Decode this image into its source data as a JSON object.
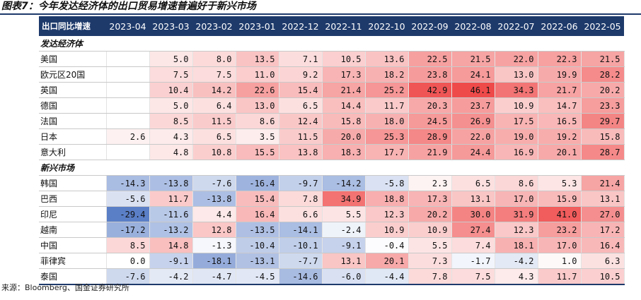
{
  "title": "图表7：今年发达经济体的出口贸易增速普遍好于新兴市场",
  "source": "来源：Bloomberg、国金证券研究所",
  "header": {
    "first": "出口同比增速",
    "months": [
      "2023-04",
      "2023-03",
      "2023-02",
      "2023-01",
      "2022-12",
      "2022-11",
      "2022-10",
      "2022-09",
      "2022-08",
      "2022-07",
      "2022-06",
      "2022-05"
    ]
  },
  "sections": [
    {
      "name": "发达经济体",
      "rows": [
        {
          "label": "美国",
          "values": [
            "",
            "5.0",
            "8.0",
            "13.5",
            "7.1",
            "10.5",
            "13.6",
            "22.5",
            "21.5",
            "22.0",
            "22.3",
            "21.5"
          ]
        },
        {
          "label": "欧元区20国",
          "values": [
            "",
            "7.5",
            "7.5",
            "11.0",
            "9.2",
            "17.3",
            "18.2",
            "23.8",
            "24.1",
            "13.0",
            "19.9",
            "28.2"
          ]
        },
        {
          "label": "英国",
          "values": [
            "",
            "10.4",
            "14.2",
            "22.6",
            "15.4",
            "21.4",
            "25.2",
            "42.9",
            "46.1",
            "34.3",
            "21.7",
            "20.2"
          ]
        },
        {
          "label": "德国",
          "values": [
            "",
            "5.0",
            "6.4",
            "13.0",
            "6.5",
            "14.4",
            "11.7",
            "20.3",
            "23.7",
            "10.9",
            "14.7",
            "23.3"
          ]
        },
        {
          "label": "法国",
          "values": [
            "",
            "8.5",
            "11.5",
            "8.6",
            "12.4",
            "15.8",
            "18.0",
            "24.5",
            "26.9",
            "17.5",
            "16.5",
            "29.7"
          ]
        },
        {
          "label": "日本",
          "values": [
            "2.6",
            "4.3",
            "6.5",
            "3.5",
            "11.5",
            "20.0",
            "25.3",
            "28.9",
            "22.0",
            "19.0",
            "19.2",
            "15.8"
          ]
        },
        {
          "label": "意大利",
          "values": [
            "",
            "4.8",
            "10.8",
            "15.5",
            "13.8",
            "18.3",
            "17.7",
            "21.9",
            "24.4",
            "16.9",
            "20.1",
            "28.7"
          ]
        }
      ]
    },
    {
      "name": "新兴市场",
      "rows": [
        {
          "label": "韩国",
          "values": [
            "-14.3",
            "-13.8",
            "-7.6",
            "-16.4",
            "-9.7",
            "-14.2",
            "-5.8",
            "2.3",
            "6.5",
            "8.6",
            "5.3",
            "21.4"
          ]
        },
        {
          "label": "巴西",
          "values": [
            "-5.6",
            "11.7",
            "-13.8",
            "15.4",
            "7.8",
            "34.9",
            "18.8",
            "17.3",
            "13.1",
            "17.0",
            "15.9",
            "13.1"
          ]
        },
        {
          "label": "印尼",
          "values": [
            "-29.4",
            "-11.6",
            "4.4",
            "16.4",
            "6.6",
            "5.5",
            "12.3",
            "20.2",
            "30.0",
            "31.9",
            "41.0",
            "27.0"
          ]
        },
        {
          "label": "越南",
          "values": [
            "-17.2",
            "-13.2",
            "12.8",
            "-13.5",
            "-14.1",
            "-2.4",
            "10.9",
            "10.9",
            "27.4",
            "12.3",
            "23.2",
            "17.2"
          ]
        },
        {
          "label": "中国",
          "values": [
            "8.5",
            "14.8",
            "-1.3",
            "-10.4",
            "-10.1",
            "-9.1",
            "-0.4",
            "5.5",
            "7.4",
            "18.1",
            "17.0",
            "16.4"
          ]
        },
        {
          "label": "菲律宾",
          "values": [
            "0.0",
            "-9.1",
            "-18.1",
            "-13.1",
            "-7.7",
            "13.1",
            "20.1",
            "7.3",
            "-1.7",
            "-4.2",
            "1.0",
            "6.3"
          ]
        },
        {
          "label": "泰国",
          "values": [
            "-7.6",
            "-4.2",
            "-4.7",
            "-4.5",
            "-14.6",
            "-6.0",
            "-4.4",
            "7.8",
            "7.5",
            "4.3",
            "11.7",
            "10.5"
          ]
        }
      ]
    }
  ],
  "colors": {
    "header_bg": "#1e3a6b",
    "negative_max": "#5b7fc7",
    "positive_max": "#ef4a4a"
  }
}
